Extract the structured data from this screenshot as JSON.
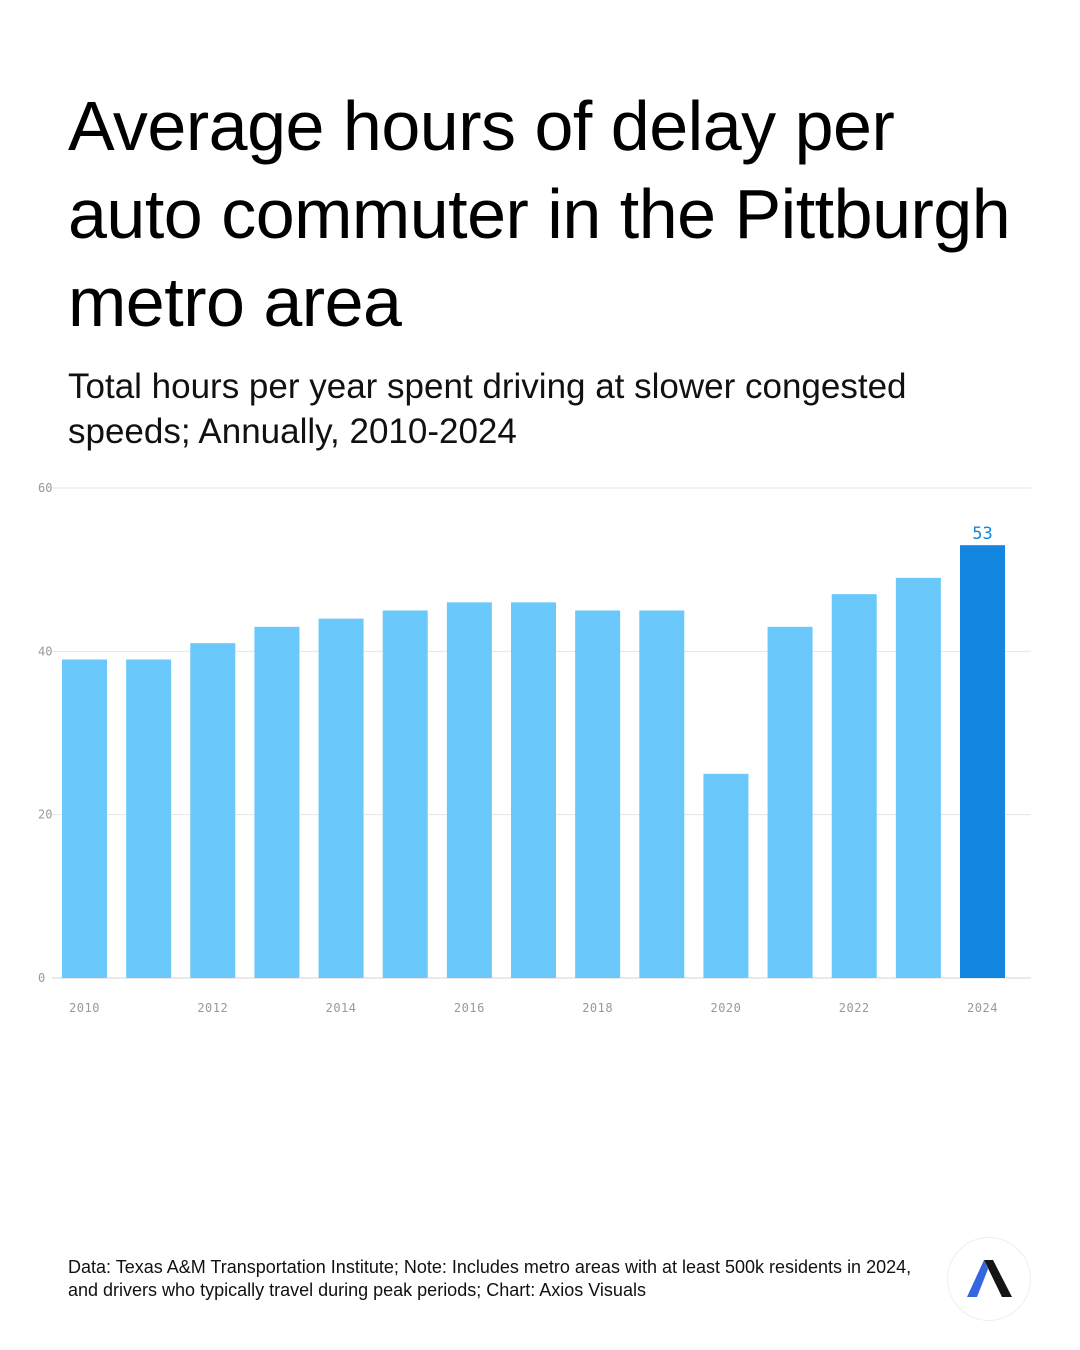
{
  "header": {
    "title": "Average hours of delay per auto commuter in the Pittburgh metro area",
    "subtitle": "Total hours per year spent driving at slower congested speeds; Annually, 2010-2024"
  },
  "chart_data": {
    "type": "bar",
    "title": "Average hours of delay per auto commuter in the Pittburgh metro area",
    "categories": [
      "2010",
      "2011",
      "2012",
      "2013",
      "2014",
      "2015",
      "2016",
      "2017",
      "2018",
      "2019",
      "2020",
      "2021",
      "2022",
      "2023",
      "2024"
    ],
    "values": [
      39,
      39,
      41,
      43,
      44,
      45,
      46,
      46,
      45,
      45,
      25,
      43,
      47,
      49,
      53
    ],
    "x_tick_labels": [
      "2010",
      "2012",
      "2014",
      "2016",
      "2018",
      "2020",
      "2022",
      "2024"
    ],
    "y_ticks": [
      0,
      20,
      40,
      60
    ],
    "ylim": [
      0,
      60
    ],
    "xlabel": "",
    "ylabel": "",
    "grid": true,
    "annotations": [
      {
        "category": "2024",
        "label": "53"
      }
    ],
    "colors": {
      "default": "#6AC8FB",
      "highlight": "#1386E0",
      "label": "#1386E0"
    }
  },
  "footer": {
    "source": "Data: Texas A&M Transportation Institute; Note: Includes metro areas with at least 500k residents in 2024, and drivers who typically travel during peak periods; Chart: Axios Visuals"
  },
  "logo": {
    "name": "axios-logo",
    "text": "Axios"
  }
}
